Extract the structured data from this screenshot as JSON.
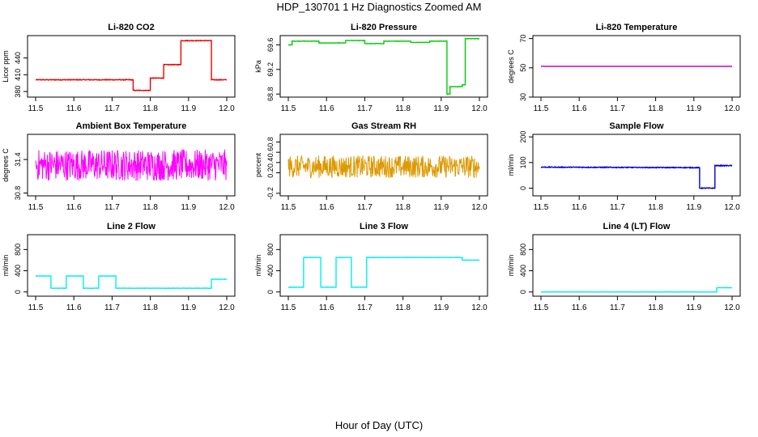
{
  "figure": {
    "title": "HDP_130701  1 Hz Diagnostics Zoomed AM",
    "xlabel": "Hour of Day (UTC)"
  },
  "chart_data": [
    {
      "type": "line",
      "title": "Li-820 CO2",
      "ylabel": "Licor ppm",
      "xlim": [
        11.5,
        12.0
      ],
      "ylim": [
        370,
        480
      ],
      "yticks": [
        380,
        410,
        440
      ],
      "xticks": [
        11.5,
        11.6,
        11.7,
        11.8,
        11.9,
        12.0
      ],
      "noise": 0.6,
      "color": "#ee0000",
      "series": [
        {
          "x": [
            11.5,
            11.755,
            11.755,
            11.8,
            11.8,
            11.835,
            11.835,
            11.88,
            11.88,
            11.96,
            11.96,
            12.0
          ],
          "y": [
            401,
            401,
            382,
            382,
            404,
            404,
            428,
            428,
            471,
            471,
            401,
            401
          ]
        }
      ]
    },
    {
      "type": "line",
      "title": "Li-820 Pressure",
      "ylabel": "kPa",
      "xlim": [
        11.5,
        12.0
      ],
      "ylim": [
        68.75,
        69.75
      ],
      "yticks": [
        68.8,
        69.2,
        69.6
      ],
      "xticks": [
        11.5,
        11.6,
        11.7,
        11.8,
        11.9,
        12.0
      ],
      "noise": 0.003,
      "color": "#00cc00",
      "series": [
        {
          "x": [
            11.5,
            11.51,
            11.51,
            11.58,
            11.58,
            11.65,
            11.65,
            11.7,
            11.7,
            11.75,
            11.75,
            11.82,
            11.82,
            11.87,
            11.87,
            11.915,
            11.915,
            11.923,
            11.923,
            11.955,
            11.955,
            11.963,
            11.963,
            12.0
          ],
          "y": [
            69.6,
            69.6,
            69.66,
            69.66,
            69.63,
            69.63,
            69.67,
            69.67,
            69.62,
            69.62,
            69.66,
            69.66,
            69.64,
            69.64,
            69.66,
            69.66,
            68.8,
            68.8,
            68.92,
            68.92,
            68.95,
            68.95,
            69.7,
            69.7
          ]
        }
      ]
    },
    {
      "type": "line",
      "title": "Li-820 Temperature",
      "ylabel": "degrees C",
      "xlim": [
        11.5,
        12.0
      ],
      "ylim": [
        30,
        72
      ],
      "yticks": [
        30,
        50,
        70
      ],
      "xticks": [
        11.5,
        11.6,
        11.7,
        11.8,
        11.9,
        12.0
      ],
      "noise": 0,
      "color": "#cc00cc",
      "series": [
        {
          "x": [
            11.5,
            12.0
          ],
          "y": [
            51,
            51
          ]
        }
      ]
    },
    {
      "type": "line",
      "title": "Ambient Box Temperature",
      "ylabel": "degrees C",
      "xlim": [
        11.5,
        12.0
      ],
      "ylim": [
        30.75,
        31.85
      ],
      "yticks": [
        30.8,
        31.4
      ],
      "xticks": [
        11.5,
        11.6,
        11.7,
        11.8,
        11.9,
        12.0
      ],
      "noise": 0.28,
      "color": "#ff00ff",
      "series": [
        {
          "x": [
            11.5,
            12.0
          ],
          "y": [
            31.3,
            31.3
          ]
        }
      ]
    },
    {
      "type": "line",
      "title": "Gas Stream RH",
      "ylabel": "percent",
      "xlim": [
        11.5,
        12.0
      ],
      "ylim": [
        -0.25,
        0.95
      ],
      "yticks": [
        -0.2,
        0.2,
        0.4,
        0.6,
        0.8
      ],
      "xticks": [
        11.5,
        11.6,
        11.7,
        11.8,
        11.9,
        12.0
      ],
      "noise": 0.22,
      "color": "#dd9900",
      "series": [
        {
          "x": [
            11.5,
            12.0
          ],
          "y": [
            0.32,
            0.32
          ]
        }
      ]
    },
    {
      "type": "line",
      "title": "Sample Flow",
      "ylabel": "ml/min",
      "xlim": [
        11.5,
        12.0
      ],
      "ylim": [
        -30,
        210
      ],
      "yticks": [
        0,
        100,
        200
      ],
      "xticks": [
        11.5,
        11.6,
        11.7,
        11.8,
        11.9,
        12.0
      ],
      "noise": 1.5,
      "color": "#0000cc",
      "series": [
        {
          "x": [
            11.5,
            11.915,
            11.915,
            11.955,
            11.955,
            12.0
          ],
          "y": [
            82,
            80,
            0,
            0,
            88,
            88
          ]
        }
      ]
    },
    {
      "type": "line",
      "title": "Line 2 Flow",
      "ylabel": "ml/min",
      "xlim": [
        11.5,
        12.0
      ],
      "ylim": [
        -80,
        1080
      ],
      "yticks": [
        0,
        400,
        800
      ],
      "xticks": [
        11.5,
        11.6,
        11.7,
        11.8,
        11.9,
        12.0
      ],
      "noise": 3,
      "color": "#00eeee",
      "series": [
        {
          "x": [
            11.5,
            11.54,
            11.54,
            11.58,
            11.58,
            11.625,
            11.625,
            11.665,
            11.665,
            11.71,
            11.71,
            11.96,
            11.96,
            12.0
          ],
          "y": [
            300,
            300,
            70,
            70,
            300,
            300,
            70,
            70,
            300,
            300,
            70,
            70,
            240,
            240
          ]
        }
      ]
    },
    {
      "type": "line",
      "title": "Line 3 Flow",
      "ylabel": "ml/min",
      "xlim": [
        11.5,
        12.0
      ],
      "ylim": [
        -80,
        1080
      ],
      "yticks": [
        0,
        400,
        800
      ],
      "xticks": [
        11.5,
        11.6,
        11.7,
        11.8,
        11.9,
        12.0
      ],
      "noise": 3,
      "color": "#00eeee",
      "series": [
        {
          "x": [
            11.5,
            11.54,
            11.54,
            11.585,
            11.585,
            11.625,
            11.625,
            11.665,
            11.665,
            11.705,
            11.705,
            11.955,
            11.955,
            12.0
          ],
          "y": [
            90,
            90,
            650,
            650,
            90,
            90,
            650,
            650,
            90,
            90,
            650,
            650,
            600,
            600
          ]
        }
      ]
    },
    {
      "type": "line",
      "title": "Line 4 (LT) Flow",
      "ylabel": "ml/min",
      "xlim": [
        11.5,
        12.0
      ],
      "ylim": [
        -80,
        1080
      ],
      "yticks": [
        0,
        400,
        800
      ],
      "xticks": [
        11.5,
        11.6,
        11.7,
        11.8,
        11.9,
        12.0
      ],
      "noise": 1,
      "color": "#00eeee",
      "series": [
        {
          "x": [
            11.5,
            11.96,
            11.96,
            12.0
          ],
          "y": [
            0,
            0,
            80,
            80
          ]
        }
      ]
    }
  ]
}
